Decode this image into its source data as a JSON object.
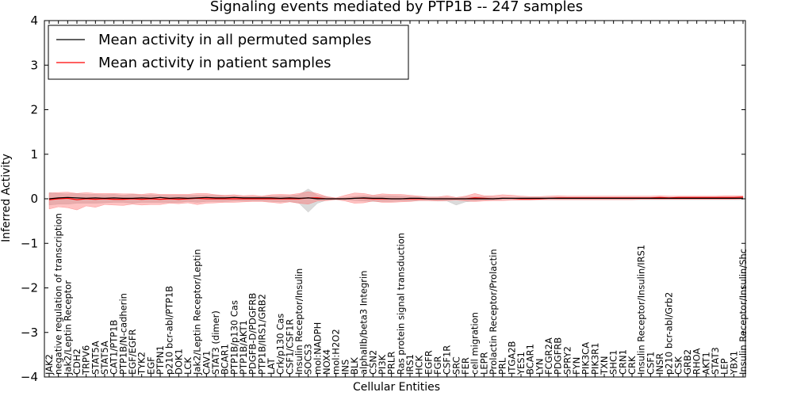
{
  "chart_data": {
    "type": "line",
    "title": "Signaling events mediated by PTP1B -- 247 samples",
    "xlabel": "Cellular Entities",
    "ylabel": "Inferred Activity",
    "ylim": [
      -4,
      4
    ],
    "yticks": [
      -4,
      -3,
      -2,
      -1,
      0,
      1,
      2,
      3,
      4
    ],
    "ytick_labels": [
      "−4",
      "−3",
      "−2",
      "−1",
      "0",
      "1",
      "2",
      "3",
      "4"
    ],
    "grid": false,
    "legend_position": "top-left",
    "categories": [
      "JAK2",
      "negative regulation of transcription",
      "Jak2/Leptin Receptor",
      "CDH2",
      "TRPV6",
      "STAT5A",
      "STAT5A",
      "CAT1/PTP1B",
      "PTP1B/N-cadherin",
      "EGF/EGFR",
      "TYK2",
      "EGF",
      "PTPN1",
      "p210 bcr-abl/PTP1B",
      "DOK1",
      "LCK",
      "Jak2/Leptin Receptor/Leptin",
      "CAV1",
      "STAT3 (dimer)",
      "BCAR1",
      "PTP1B/p130 Cas",
      "PTP1B/AKT1",
      "PDGFB-D/PDGFRB",
      "PTP1B/IRS1/GRB2",
      "LAT",
      "Crk/p130 Cas",
      "CSF1/CSF1R",
      "Insulin Receptor/Insulin",
      "SOCS3",
      "mol:NADPH",
      "NOX4",
      "mol:H2O2",
      "INS",
      "BLK",
      "alphaIIb/beta3 Integrin",
      "CSN2",
      "PI3K",
      "PRLR",
      "Ras protein signal transduction",
      "IRS1",
      "HCK",
      "EGFR",
      "FGR",
      "CSF1R",
      "SRC",
      "FER",
      "cell migration",
      "LEPR",
      "Prolactin Receptor/Prolactin",
      "PRL",
      "ITGA2B",
      "YES1",
      "BCAR1",
      "LYN",
      "FCGR2A",
      "PDGFRB",
      "SPRY2",
      "FYN",
      "PIK3CA",
      "PIK3R1",
      "TXN",
      "SHC1",
      "CRN1",
      "CRK",
      "Insulin Receptor/Insulin/IRS1",
      "CSF1",
      "INSR",
      "p210 bcr-abl/Grb2",
      "CSK",
      "GRB2",
      "RHOA",
      "AKT1",
      "STAT3",
      "LEP",
      "YBX1",
      "Insulin Receptor/Insulin/Shc"
    ],
    "series": [
      {
        "name": "Mean activity in all permuted samples",
        "color": "#000000",
        "values": [
          0.0,
          0.02,
          0.03,
          0.02,
          0.01,
          0.02,
          0.01,
          0.02,
          0.01,
          0.01,
          0.02,
          0.01,
          0.03,
          0.01,
          0.02,
          0.01,
          0.02,
          0.03,
          0.02,
          0.02,
          0.03,
          0.02,
          0.02,
          0.02,
          0.02,
          0.01,
          0.02,
          0.01,
          0.02,
          0.0,
          0.0,
          0.0,
          0.0,
          0.01,
          0.02,
          0.01,
          0.01,
          0.0,
          0.0,
          0.01,
          0.01,
          0.0,
          0.0,
          0.0,
          0.0,
          0.0,
          0.0,
          0.0,
          0.0,
          0.01,
          0.01,
          0.01,
          0.01,
          0.01,
          0.01,
          0.01,
          0.01,
          0.01,
          0.01,
          0.01,
          0.01,
          0.01,
          0.01,
          0.01,
          0.01,
          0.01,
          0.01,
          0.01,
          0.01,
          0.01,
          0.01,
          0.01,
          0.01,
          0.01,
          0.01,
          0.01
        ],
        "band": {
          "color": "#b0b0b0",
          "upper": [
            0.14,
            0.12,
            0.11,
            0.12,
            0.1,
            0.1,
            0.09,
            0.1,
            0.08,
            0.1,
            0.08,
            0.09,
            0.08,
            0.08,
            0.08,
            0.08,
            0.08,
            0.08,
            0.08,
            0.06,
            0.06,
            0.05,
            0.05,
            0.05,
            0.06,
            0.07,
            0.07,
            0.09,
            0.22,
            0.08,
            0.04,
            0.01,
            0.03,
            0.05,
            0.07,
            0.06,
            0.07,
            0.07,
            0.06,
            0.05,
            0.04,
            0.04,
            0.04,
            0.03,
            0.02,
            0.04,
            0.04,
            0.05,
            0.04,
            0.03,
            0.02,
            0.03,
            0.03,
            0.03,
            0.03,
            0.03,
            0.03,
            0.03,
            0.03,
            0.03,
            0.03,
            0.03,
            0.03,
            0.03,
            0.03,
            0.03,
            0.03,
            0.03,
            0.03,
            0.03,
            0.03,
            0.03,
            0.03,
            0.03,
            0.03,
            0.03
          ],
          "lower": [
            -0.14,
            -0.12,
            -0.12,
            -0.1,
            -0.1,
            -0.1,
            -0.09,
            -0.08,
            -0.08,
            -0.1,
            -0.08,
            -0.08,
            -0.08,
            -0.08,
            -0.08,
            -0.06,
            -0.08,
            -0.06,
            -0.06,
            -0.06,
            -0.05,
            -0.05,
            -0.05,
            -0.05,
            -0.06,
            -0.07,
            -0.06,
            -0.1,
            -0.3,
            -0.1,
            -0.03,
            -0.01,
            -0.02,
            -0.04,
            -0.05,
            -0.06,
            -0.06,
            -0.06,
            -0.05,
            -0.05,
            -0.04,
            -0.04,
            -0.05,
            -0.05,
            -0.14,
            -0.07,
            -0.05,
            -0.03,
            -0.03,
            -0.02,
            -0.02,
            -0.02,
            -0.02,
            -0.02,
            -0.02,
            -0.02,
            -0.02,
            -0.02,
            -0.02,
            -0.02,
            -0.02,
            -0.02,
            -0.02,
            -0.02,
            -0.02,
            -0.02,
            -0.02,
            -0.02,
            -0.02,
            -0.02,
            -0.02,
            -0.02,
            -0.02,
            -0.02,
            -0.02,
            -0.02
          ]
        }
      },
      {
        "name": "Mean activity in patient samples",
        "color": "#ff0000",
        "values": [
          -0.02,
          0.0,
          0.01,
          -0.02,
          0.0,
          -0.01,
          0.0,
          -0.01,
          -0.01,
          0.0,
          -0.01,
          0.0,
          -0.01,
          0.0,
          -0.01,
          0.0,
          0.01,
          0.0,
          0.0,
          0.0,
          0.0,
          0.0,
          0.0,
          0.0,
          0.0,
          0.0,
          0.0,
          0.0,
          0.02,
          0.02,
          0.0,
          0.0,
          0.0,
          0.01,
          0.01,
          0.0,
          0.0,
          0.0,
          0.0,
          0.0,
          0.0,
          0.0,
          0.0,
          0.0,
          0.0,
          0.0,
          0.02,
          0.01,
          0.0,
          0.01,
          0.01,
          0.0,
          0.0,
          0.0,
          0.01,
          0.02,
          0.02,
          0.02,
          0.02,
          0.02,
          0.02,
          0.02,
          0.02,
          0.02,
          0.02,
          0.02,
          0.03,
          0.02,
          0.03,
          0.03,
          0.03,
          0.03,
          0.03,
          0.03,
          0.03,
          0.04
        ],
        "band": {
          "color": "#ff6666",
          "upper": [
            0.13,
            0.14,
            0.15,
            0.12,
            0.14,
            0.12,
            0.12,
            0.12,
            0.11,
            0.11,
            0.1,
            0.12,
            0.1,
            0.1,
            0.1,
            0.1,
            0.12,
            0.12,
            0.09,
            0.08,
            0.09,
            0.07,
            0.08,
            0.06,
            0.09,
            0.1,
            0.09,
            0.12,
            0.16,
            0.12,
            0.05,
            0.02,
            0.08,
            0.13,
            0.12,
            0.08,
            0.11,
            0.1,
            0.1,
            0.08,
            0.06,
            0.04,
            0.04,
            0.07,
            0.03,
            0.06,
            0.12,
            0.07,
            0.07,
            0.09,
            0.08,
            0.06,
            0.05,
            0.05,
            0.06,
            0.07,
            0.06,
            0.06,
            0.06,
            0.06,
            0.06,
            0.06,
            0.06,
            0.06,
            0.06,
            0.06,
            0.07,
            0.06,
            0.06,
            0.06,
            0.06,
            0.06,
            0.06,
            0.07,
            0.07,
            0.07
          ],
          "lower": [
            -0.23,
            -0.18,
            -0.2,
            -0.25,
            -0.16,
            -0.19,
            -0.13,
            -0.14,
            -0.15,
            -0.12,
            -0.14,
            -0.13,
            -0.13,
            -0.1,
            -0.11,
            -0.09,
            -0.13,
            -0.1,
            -0.09,
            -0.08,
            -0.08,
            -0.07,
            -0.06,
            -0.06,
            -0.08,
            -0.1,
            -0.07,
            -0.1,
            -0.12,
            -0.05,
            -0.04,
            -0.02,
            -0.05,
            -0.1,
            -0.09,
            -0.05,
            -0.08,
            -0.08,
            -0.07,
            -0.06,
            -0.04,
            -0.04,
            -0.05,
            -0.04,
            -0.03,
            -0.05,
            -0.06,
            -0.05,
            -0.04,
            -0.04,
            -0.03,
            -0.03,
            -0.03,
            -0.02,
            -0.02,
            -0.02,
            -0.02,
            -0.02,
            -0.02,
            -0.02,
            -0.02,
            -0.02,
            -0.02,
            -0.02,
            -0.01,
            -0.01,
            -0.01,
            -0.01,
            -0.01,
            -0.01,
            -0.01,
            -0.01,
            -0.01,
            -0.01,
            -0.01,
            0.0
          ]
        }
      }
    ]
  }
}
